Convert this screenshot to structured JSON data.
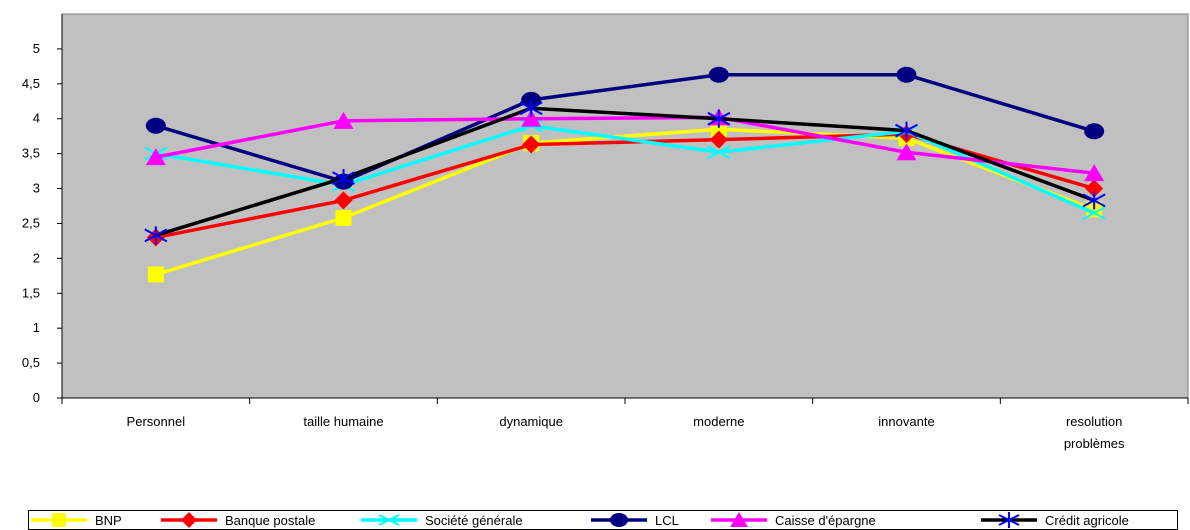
{
  "chart_data": {
    "type": "line",
    "title": "",
    "xlabel": "",
    "ylabel": "",
    "categories": [
      "Personnel",
      "taille humaine",
      "dynamique",
      "moderne",
      "innovante",
      "resolution problèmes"
    ],
    "category_lines": [
      [
        "Personnel"
      ],
      [
        "taille humaine"
      ],
      [
        "dynamique"
      ],
      [
        "moderne"
      ],
      [
        "innovante"
      ],
      [
        "resolution",
        "problèmes"
      ]
    ],
    "ylim": [
      0,
      5.5
    ],
    "yticks": [
      "0",
      "0,5",
      "1",
      "1,5",
      "2",
      "2,5",
      "3",
      "3,5",
      "4",
      "4,5",
      "5"
    ],
    "grid": false,
    "plot_background": "#c0c0c0",
    "legend_position": "bottom",
    "series": [
      {
        "name": "BNP",
        "color": "#ffff00",
        "marker": "square",
        "values": [
          1.77,
          2.58,
          3.65,
          3.85,
          3.72,
          2.7
        ]
      },
      {
        "name": "Banque postale",
        "color": "#ff0000",
        "marker": "diamond",
        "values": [
          2.3,
          2.83,
          3.63,
          3.7,
          3.78,
          3.0
        ]
      },
      {
        "name": "Société générale",
        "color": "#00ffff",
        "marker": "x",
        "values": [
          3.5,
          3.05,
          3.9,
          3.52,
          3.82,
          2.65
        ]
      },
      {
        "name": "LCL",
        "color": "#000080",
        "marker": "circle",
        "values": [
          3.9,
          3.1,
          4.27,
          4.63,
          4.63,
          3.82
        ]
      },
      {
        "name": "Caisse d'épargne",
        "color": "#ff00ff",
        "marker": "triangle",
        "values": [
          3.45,
          3.97,
          4.0,
          4.02,
          3.52,
          3.22
        ]
      },
      {
        "name": "Crédit agricole",
        "color": "#000000",
        "marker": "star",
        "values": [
          2.33,
          3.15,
          4.15,
          4.0,
          3.83,
          2.83
        ]
      }
    ]
  }
}
